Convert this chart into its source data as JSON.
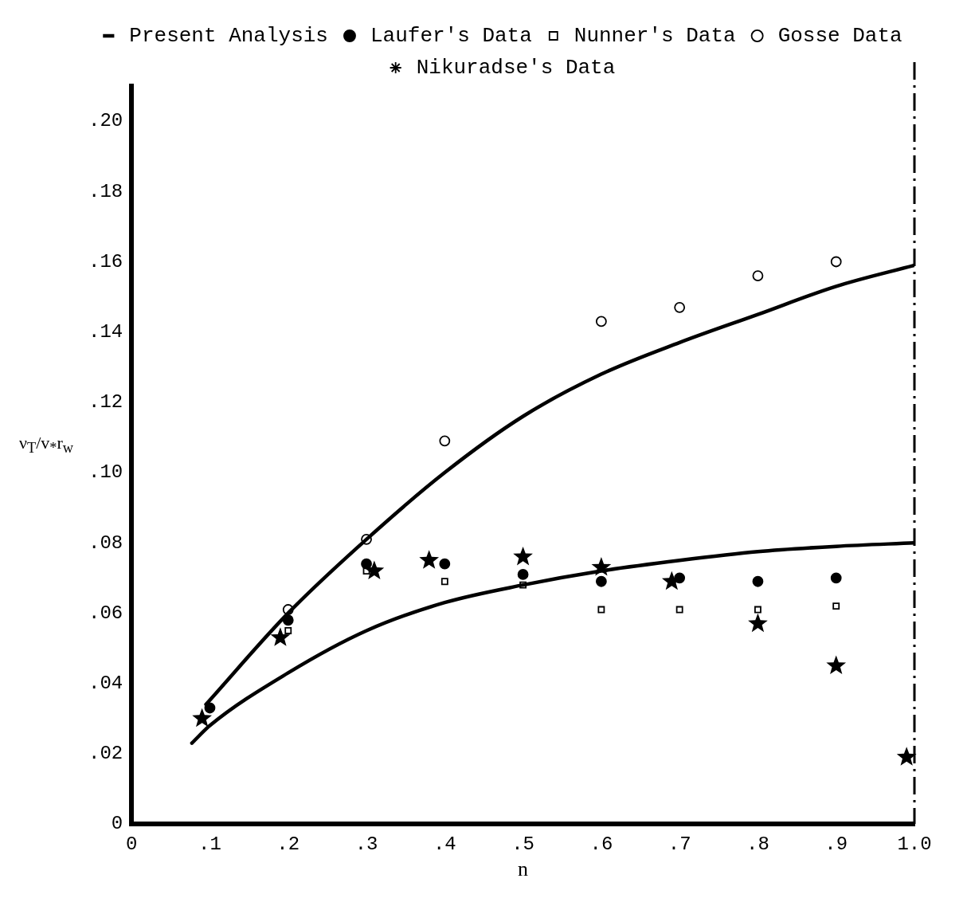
{
  "chart_data": {
    "type": "scatter",
    "xlabel": "n",
    "ylabel": "ν$_{T}$/v$_{*}$r$_{w}$",
    "xlim": [
      0,
      1.0
    ],
    "ylim": [
      0,
      0.21
    ],
    "xticks": [
      {
        "value": 0,
        "label": "0"
      },
      {
        "value": 0.1,
        "label": ".1"
      },
      {
        "value": 0.2,
        "label": ".2"
      },
      {
        "value": 0.3,
        "label": ".3"
      },
      {
        "value": 0.4,
        "label": ".4"
      },
      {
        "value": 0.5,
        "label": ".5"
      },
      {
        "value": 0.6,
        "label": ".6"
      },
      {
        "value": 0.7,
        "label": ".7"
      },
      {
        "value": 0.8,
        "label": ".8"
      },
      {
        "value": 0.9,
        "label": ".9"
      },
      {
        "value": 1.0,
        "label": "1.0"
      }
    ],
    "yticks": [
      {
        "value": 0,
        "label": "0"
      },
      {
        "value": 0.02,
        "label": ".02"
      },
      {
        "value": 0.04,
        "label": ".04"
      },
      {
        "value": 0.06,
        "label": ".06"
      },
      {
        "value": 0.08,
        "label": ".08"
      },
      {
        "value": 0.1,
        "label": ".10"
      },
      {
        "value": 0.12,
        "label": ".12"
      },
      {
        "value": 0.14,
        "label": ".14"
      },
      {
        "value": 0.16,
        "label": ".16"
      },
      {
        "value": 0.18,
        "label": ".18"
      },
      {
        "value": 0.2,
        "label": ".20"
      }
    ],
    "grid": false,
    "legend": "top",
    "ref_lines": [
      {
        "axis": "x",
        "value": 1.0,
        "label": null,
        "color": "#000000",
        "line_style": "dashed"
      }
    ],
    "series": [
      {
        "name": "Present Analysis",
        "type": "line",
        "color": "#000000",
        "marker": "none",
        "line_style": "solid",
        "x": [
          0.095,
          0.2,
          0.3,
          0.4,
          0.5,
          0.6,
          0.7,
          0.8,
          0.9,
          1.0,
          null,
          0.077,
          0.1,
          0.2,
          0.3,
          0.4,
          0.5,
          0.6,
          0.7,
          0.8,
          0.9,
          1.0
        ],
        "values": [
          0.034,
          0.06,
          0.081,
          0.1,
          0.116,
          0.128,
          0.137,
          0.145,
          0.153,
          0.159,
          null,
          0.023,
          0.028,
          0.043,
          0.055,
          0.063,
          0.068,
          0.072,
          0.075,
          0.0775,
          0.079,
          0.08
        ]
      },
      {
        "name": "Laufer's Data",
        "type": "scatter",
        "color": "#000000",
        "marker": "circle",
        "x": [
          0.1,
          0.2,
          0.3,
          0.4,
          0.5,
          0.6,
          0.7,
          0.8,
          0.9
        ],
        "values": [
          0.033,
          0.058,
          0.074,
          0.074,
          0.071,
          0.069,
          0.07,
          0.069,
          0.07
        ]
      },
      {
        "name": "Nunner's Data",
        "type": "scatter",
        "color": "#ffffff",
        "marker": "square",
        "x": [
          0.2,
          0.3,
          0.4,
          0.5,
          0.6,
          0.7,
          0.8,
          0.9
        ],
        "values": [
          0.055,
          0.072,
          0.069,
          0.068,
          0.061,
          0.061,
          0.061,
          0.062
        ]
      },
      {
        "name": "Gosse Data",
        "type": "scatter",
        "color": "#ffffff",
        "marker": "circle",
        "x": [
          0.2,
          0.3,
          0.4,
          0.6,
          0.7,
          0.8,
          0.9
        ],
        "values": [
          0.061,
          0.081,
          0.109,
          0.143,
          0.147,
          0.156,
          0.16
        ]
      },
      {
        "name": "Nikuradse's Data",
        "type": "scatter",
        "color": "#000000",
        "marker": "star",
        "x": [
          0.09,
          0.19,
          0.31,
          0.38,
          0.5,
          0.6,
          0.69,
          0.8,
          0.9,
          0.99
        ],
        "values": [
          0.03,
          0.053,
          0.072,
          0.075,
          0.076,
          0.073,
          0.069,
          0.057,
          0.045,
          0.019
        ]
      }
    ]
  }
}
